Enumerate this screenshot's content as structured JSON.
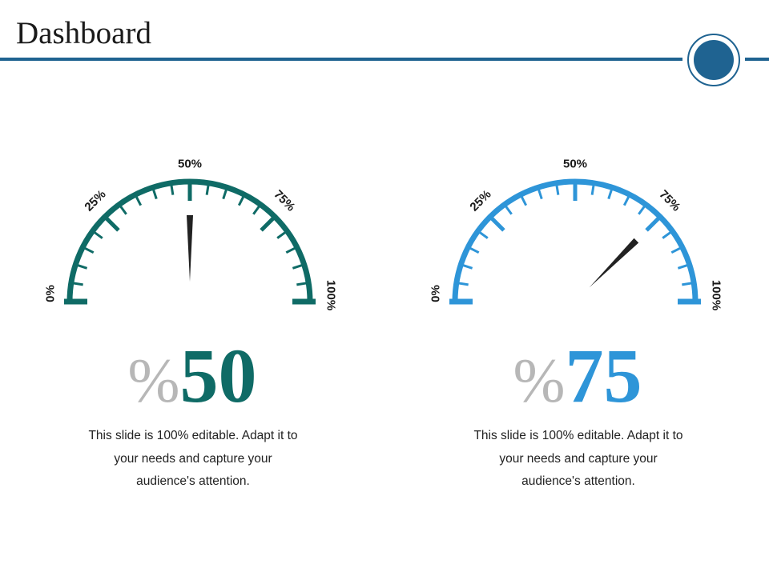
{
  "header": {
    "title": "Dashboard"
  },
  "colors": {
    "accent": "#1f6391",
    "gauge1": "#0f6b66",
    "gauge2": "#2e95d8",
    "needle": "#222222",
    "percent_sign": "#b7b7b7"
  },
  "gauges": [
    {
      "value": 50,
      "color": "#0f6b66",
      "tick_labels": [
        "0%",
        "25%",
        "50%",
        "75%",
        "100%"
      ],
      "percent_sign": "%",
      "value_text": "50",
      "description": [
        "This slide is 100% editable. Adapt it to",
        "your needs and capture your",
        "audience's attention."
      ]
    },
    {
      "value": 75,
      "color": "#2e95d8",
      "tick_labels": [
        "0%",
        "25%",
        "50%",
        "75%",
        "100%"
      ],
      "percent_sign": "%",
      "value_text": "75",
      "description": [
        "This slide is 100% editable. Adapt it to",
        "your needs and capture your",
        "audience's attention."
      ]
    }
  ]
}
